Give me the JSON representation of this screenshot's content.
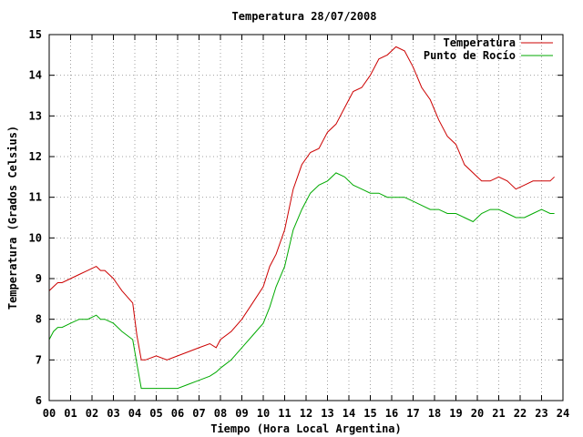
{
  "chart_data": {
    "type": "line",
    "title": "Temperatura 28/07/2008",
    "xlabel": "Tiempo (Hora Local Argentina)",
    "ylabel": "Temperatura (Grados Celsius)",
    "xlim": [
      0,
      24
    ],
    "ylim": [
      6,
      15
    ],
    "x_ticks": [
      "00",
      "01",
      "02",
      "03",
      "04",
      "05",
      "06",
      "07",
      "08",
      "09",
      "10",
      "11",
      "12",
      "13",
      "14",
      "15",
      "16",
      "17",
      "18",
      "19",
      "20",
      "21",
      "22",
      "23",
      "24"
    ],
    "y_ticks": [
      "6",
      "7",
      "8",
      "9",
      "10",
      "11",
      "12",
      "13",
      "14",
      "15"
    ],
    "grid": true,
    "legend_position": "top-right",
    "series": [
      {
        "name": "Temperatura",
        "color": "#cc0000",
        "x": [
          0,
          0.2,
          0.4,
          0.6,
          1,
          1.4,
          1.8,
          2.2,
          2.4,
          2.6,
          3,
          3.4,
          3.9,
          4.1,
          4.3,
          4.5,
          5,
          5.5,
          6,
          6.5,
          7,
          7.5,
          7.8,
          8,
          8.5,
          9,
          9.5,
          10,
          10.3,
          10.6,
          11,
          11.4,
          11.8,
          12.2,
          12.6,
          13,
          13.4,
          13.8,
          14.2,
          14.6,
          15,
          15.4,
          15.8,
          16.2,
          16.6,
          17,
          17.4,
          17.8,
          18.2,
          18.6,
          19,
          19.4,
          19.8,
          20.2,
          20.6,
          21,
          21.4,
          21.8,
          22.2,
          22.6,
          23,
          23.4,
          23.6
        ],
        "y": [
          8.7,
          8.8,
          8.9,
          8.9,
          9.0,
          9.1,
          9.2,
          9.3,
          9.2,
          9.2,
          9.0,
          8.7,
          8.4,
          7.6,
          7.0,
          7.0,
          7.1,
          7.0,
          7.1,
          7.2,
          7.3,
          7.4,
          7.3,
          7.5,
          7.7,
          8.0,
          8.4,
          8.8,
          9.3,
          9.6,
          10.2,
          11.2,
          11.8,
          12.1,
          12.2,
          12.6,
          12.8,
          13.2,
          13.6,
          13.7,
          14.0,
          14.4,
          14.5,
          14.7,
          14.6,
          14.2,
          13.7,
          13.4,
          12.9,
          12.5,
          12.3,
          11.8,
          11.6,
          11.4,
          11.4,
          11.5,
          11.4,
          11.2,
          11.3,
          11.4,
          11.4,
          11.4,
          11.5
        ]
      },
      {
        "name": "Punto de Rocío",
        "color": "#00aa00",
        "x": [
          0,
          0.2,
          0.4,
          0.6,
          1,
          1.4,
          1.8,
          2.2,
          2.4,
          2.6,
          3,
          3.4,
          3.9,
          4.1,
          4.3,
          4.5,
          5,
          5.5,
          6,
          6.5,
          7,
          7.5,
          7.8,
          8,
          8.5,
          9,
          9.5,
          10,
          10.3,
          10.6,
          11,
          11.4,
          11.8,
          12.2,
          12.6,
          13,
          13.4,
          13.8,
          14.2,
          14.6,
          15,
          15.4,
          15.8,
          16.2,
          16.6,
          17,
          17.4,
          17.8,
          18.2,
          18.6,
          19,
          19.4,
          19.8,
          20.2,
          20.6,
          21,
          21.4,
          21.8,
          22.2,
          22.6,
          23,
          23.4,
          23.6
        ],
        "y": [
          7.5,
          7.7,
          7.8,
          7.8,
          7.9,
          8.0,
          8.0,
          8.1,
          8.0,
          8.0,
          7.9,
          7.7,
          7.5,
          6.9,
          6.3,
          6.3,
          6.3,
          6.3,
          6.3,
          6.4,
          6.5,
          6.6,
          6.7,
          6.8,
          7.0,
          7.3,
          7.6,
          7.9,
          8.3,
          8.8,
          9.3,
          10.2,
          10.7,
          11.1,
          11.3,
          11.4,
          11.6,
          11.5,
          11.3,
          11.2,
          11.1,
          11.1,
          11.0,
          11.0,
          11.0,
          10.9,
          10.8,
          10.7,
          10.7,
          10.6,
          10.6,
          10.5,
          10.4,
          10.6,
          10.7,
          10.7,
          10.6,
          10.5,
          10.5,
          10.6,
          10.7,
          10.6,
          10.6
        ]
      }
    ]
  }
}
